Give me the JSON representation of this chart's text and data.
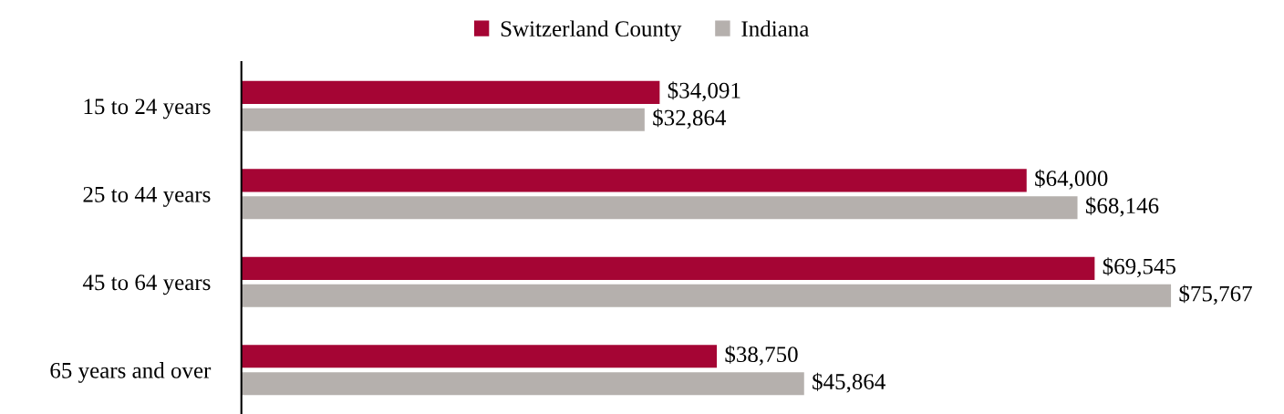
{
  "chart_data": {
    "type": "bar",
    "orientation": "horizontal",
    "categories": [
      "15 to 24 years",
      "25 to 44 years",
      "45 to 64 years",
      "65 years and over"
    ],
    "series": [
      {
        "name": "Switzerland County",
        "color": "#a50534",
        "values": [
          34091,
          64000,
          69545,
          38750
        ],
        "value_labels": [
          "$34,091",
          "$64,000",
          "$69,545",
          "$38,750"
        ]
      },
      {
        "name": "Indiana",
        "color": "#b5b0ad",
        "values": [
          32864,
          68146,
          75767,
          45864
        ],
        "value_labels": [
          "$32,864",
          "$68,146",
          "$75,767",
          "$45,864"
        ]
      }
    ],
    "legend": "top",
    "grid": false
  }
}
